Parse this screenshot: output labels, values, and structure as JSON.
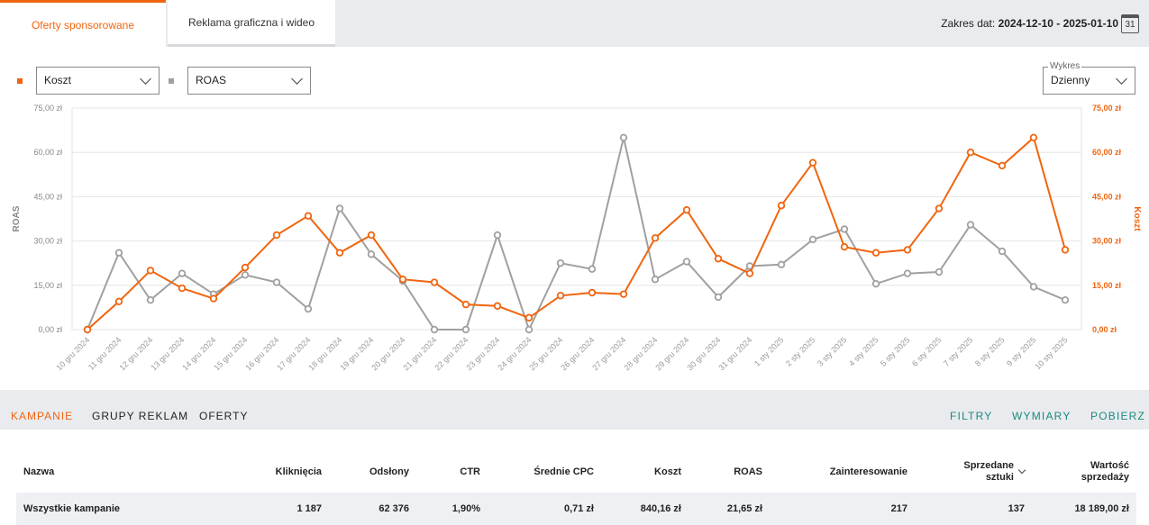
{
  "tabs": [
    {
      "label": "Oferty sponsorowane",
      "active": true
    },
    {
      "label": "Reklama graficzna i wideo",
      "active": false
    }
  ],
  "date_range": {
    "label": "Zakres dat:",
    "value": "2024-12-10 - 2025-01-10",
    "calendar_day": "31"
  },
  "controls": {
    "series1_select": "Koszt",
    "series2_select": "ROAS",
    "chart_mode_legend": "Wykres",
    "chart_mode_select": "Dzienny",
    "series1_color": "#f0650f",
    "series2_color": "#a0a0a0"
  },
  "chart_data": {
    "type": "line",
    "x": [
      "10 gru 2024",
      "11 gru 2024",
      "12 gru 2024",
      "13 gru 2024",
      "14 gru 2024",
      "15 gru 2024",
      "16 gru 2024",
      "17 gru 2024",
      "18 gru 2024",
      "19 gru 2024",
      "20 gru 2024",
      "21 gru 2024",
      "22 gru 2024",
      "23 gru 2024",
      "24 gru 2024",
      "25 gru 2024",
      "26 gru 2024",
      "27 gru 2024",
      "28 gru 2024",
      "29 gru 2024",
      "30 gru 2024",
      "31 gru 2024",
      "1 sty 2025",
      "2 sty 2025",
      "3 sty 2025",
      "4 sty 2025",
      "5 sty 2025",
      "6 sty 2025",
      "7 sty 2025",
      "8 sty 2025",
      "9 sty 2025",
      "10 sty 2025"
    ],
    "series": [
      {
        "name": "ROAS",
        "axis": "left",
        "color": "#a0a0a0",
        "values": [
          0,
          26,
          10,
          19,
          12,
          18.5,
          16,
          7,
          41,
          25.5,
          16.5,
          0,
          0,
          32,
          0,
          22.5,
          20.5,
          65,
          17,
          23,
          11,
          21.5,
          22,
          30.5,
          34,
          15.5,
          19,
          19.5,
          35.5,
          26.5,
          14.5,
          10
        ]
      },
      {
        "name": "Koszt",
        "axis": "right",
        "color": "#f0650f",
        "values": [
          0,
          9.5,
          20,
          14,
          10.5,
          21,
          32,
          38.5,
          26,
          32,
          17,
          16,
          8.5,
          8,
          4,
          11.5,
          12.5,
          12,
          31,
          40.5,
          24,
          19,
          42,
          56.5,
          28,
          26,
          27,
          41,
          60,
          55.5,
          65,
          27
        ]
      }
    ],
    "left_axis": {
      "label": "ROAS",
      "ticks": [
        "0,00 zł",
        "15,00 zł",
        "30,00 zł",
        "45,00 zł",
        "60,00 zł",
        "75,00 zł"
      ]
    },
    "right_axis": {
      "label": "Koszt",
      "ticks": [
        "0,00 zł",
        "15,00 zł",
        "30,00 zł",
        "45,00 zł",
        "60,00 zł",
        "75,00 zł"
      ]
    },
    "ylim": [
      0,
      75
    ],
    "grid": true
  },
  "bottom_tabs": [
    {
      "label": "KAMPANIE",
      "active": true
    },
    {
      "label": "GRUPY REKLAM",
      "active": false
    },
    {
      "label": "OFERTY",
      "active": false
    }
  ],
  "actions": {
    "filters": "FILTRY",
    "dimensions": "WYMIARY",
    "download": "POBIERZ"
  },
  "table": {
    "headers": {
      "name": "Nazwa",
      "clicks": "Kliknięcia",
      "views": "Odsłony",
      "ctr": "CTR",
      "cpc": "Średnie CPC",
      "cost": "Koszt",
      "roas": "ROAS",
      "interest": "Zainteresowanie",
      "sold_line1": "Sprzedane",
      "sold_line2": "sztuki",
      "sales_line1": "Wartość",
      "sales_line2": "sprzedaży"
    },
    "rows": [
      {
        "name": "Wszystkie kampanie",
        "clicks": "1 187",
        "views": "62 376",
        "ctr": "1,90%",
        "cpc": "0,71 zł",
        "cost": "840,16 zł",
        "roas": "21,65 zł",
        "interest": "217",
        "sold": "137",
        "sales": "18 189,00 zł"
      }
    ]
  }
}
